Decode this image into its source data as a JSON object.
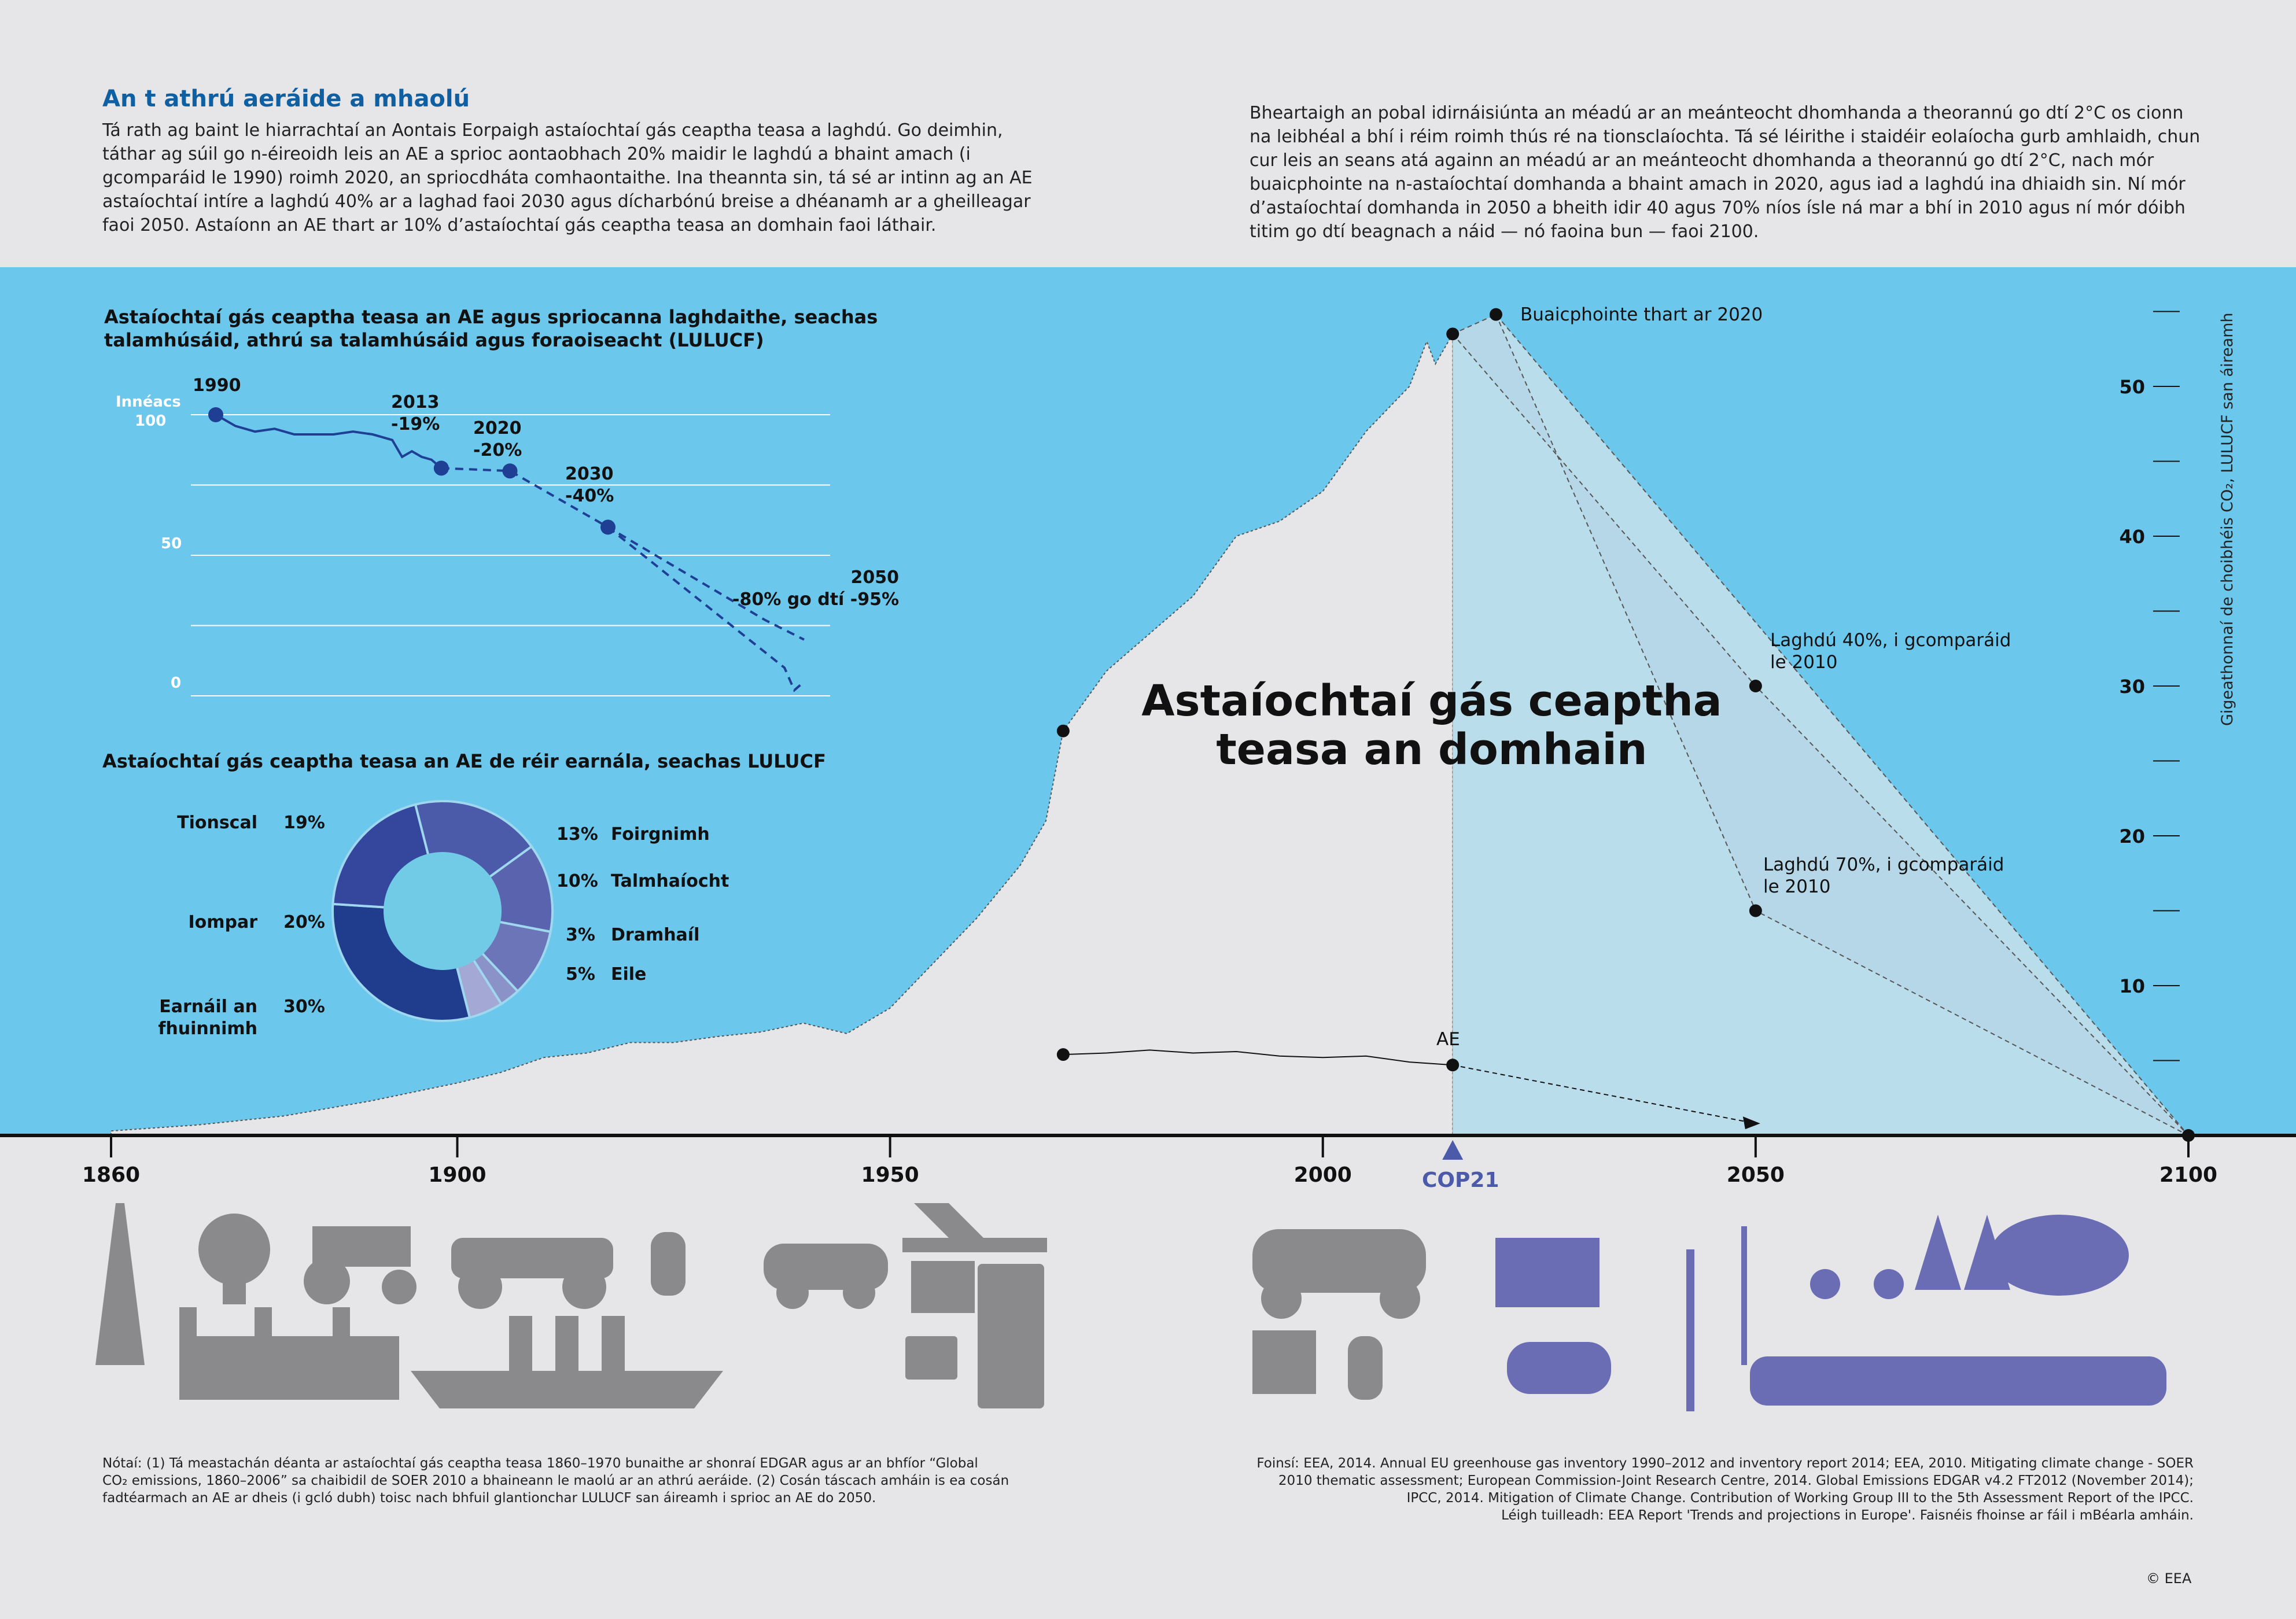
{
  "intro": {
    "title": "An t athrú aeráide a mhaolú",
    "left_text": "Tá rath ag baint le hiarrachtaí an Aontais Eorpaigh astaíochtaí gás ceaptha teasa a laghdú. Go deimhin,\ntáthar ag súil go n-éireoidh leis an AE a sprioc aontaobhach 20% maidir le laghdú a bhaint amach (i\ngcomparáid le 1990) roimh 2020, an spriocdháta comhaontaithe. Ina theannta sin, tá sé ar intinn ag an AE\nastaíochtaí intíre a laghdú 40% ar a laghad faoi 2030 agus dícharbónú breise a dhéanamh ar a gheilleagar\nfaoi 2050. Astaíonn an AE thart ar 10% d’astaíochtaí gás ceaptha teasa an domhain faoi láthair.",
    "right_text": "Bheartaigh an pobal idirnáisiúnta an méadú ar an meánteocht dhomhanda a theorannú go dtí 2°C os cionn\nna leibhéal a bhí i réim roimh thús ré na tionsclaíochta. Tá sé léirithe i staidéir eolaíocha gurb amhlaidh, chun\ncur leis an seans atá againn an méadú ar an meánteocht dhomhanda a theorannú go dtí 2°C, nach mór\nbuaicphointe na n-astaíochtaí domhanda a bhaint amach in 2020, agus iad a laghdú ina dhiaidh sin. Ní mór\nd’astaíochtaí domhanda in 2050 a bheith idir 40 agus 70% níos ísle ná mar a bhí in 2010 agus ní mór dóibh\ntitim go dtí beagnach a náid — nó faoina bun — faoi 2100."
  },
  "colors": {
    "band": "#6cc7ec",
    "area": "#e6e6e8",
    "projection": "#c8e0ec",
    "eu_line": "#1e3f94",
    "icon_grey": "#8a8a8c",
    "icon_purple": "#6a6cb4"
  },
  "chart_data": [
    {
      "type": "area",
      "title": "Astaíochtaí gás ceaptha teasa an domhain",
      "ylabel": "Gigeathonnaí de choibhéis CO₂, LULUCF san áireamh",
      "xlim": [
        1860,
        2100
      ],
      "ylim": [
        0,
        56
      ],
      "x_ticks": [
        "1860",
        "1900",
        "1950",
        "2000",
        "2050",
        "2100"
      ],
      "y_ticks": [
        "10",
        "20",
        "30",
        "40",
        "50"
      ],
      "cop_label": "COP21",
      "cop_year": 2015,
      "world_series": [
        [
          1860,
          0.3
        ],
        [
          1870,
          0.7
        ],
        [
          1880,
          1.3
        ],
        [
          1890,
          2.3
        ],
        [
          1900,
          3.5
        ],
        [
          1905,
          4.2
        ],
        [
          1910,
          5.2
        ],
        [
          1915,
          5.5
        ],
        [
          1920,
          6.2
        ],
        [
          1925,
          6.2
        ],
        [
          1930,
          6.6
        ],
        [
          1935,
          6.9
        ],
        [
          1940,
          7.5
        ],
        [
          1945,
          6.8
        ],
        [
          1950,
          8.5
        ],
        [
          1955,
          11.5
        ],
        [
          1960,
          14.5
        ],
        [
          1965,
          18
        ],
        [
          1968,
          21
        ],
        [
          1970,
          27
        ],
        [
          1975,
          31
        ],
        [
          1980,
          33.5
        ],
        [
          1985,
          36
        ],
        [
          1990,
          40
        ],
        [
          1995,
          41
        ],
        [
          2000,
          43
        ],
        [
          2005,
          47
        ],
        [
          2010,
          50
        ],
        [
          2012,
          53
        ],
        [
          2013,
          51.5
        ],
        [
          2015,
          53.5
        ]
      ],
      "projection_top": [
        [
          2015,
          53.5
        ],
        [
          2020,
          54.8
        ],
        [
          2100,
          0
        ]
      ],
      "projection_bottom": [
        [
          2015,
          53.5
        ],
        [
          2050,
          30
        ],
        [
          2100,
          0
        ]
      ],
      "projection_low": [
        [
          2020,
          54.8
        ],
        [
          2050,
          15
        ],
        [
          2100,
          0
        ]
      ],
      "eu_series": [
        [
          1970,
          5.4
        ],
        [
          1975,
          5.5
        ],
        [
          1980,
          5.7
        ],
        [
          1985,
          5.5
        ],
        [
          1990,
          5.6
        ],
        [
          1995,
          5.3
        ],
        [
          2000,
          5.2
        ],
        [
          2005,
          5.3
        ],
        [
          2010,
          4.9
        ],
        [
          2015,
          4.7
        ]
      ],
      "eu_projection": [
        [
          2015,
          4.7
        ],
        [
          2050,
          0.8
        ]
      ],
      "annotations": {
        "peak": "Buaicphointe thart ar 2020",
        "reduce40": "Laghdú 40%, i gcomparáid\nle 2010",
        "reduce70": "Laghdú 70%, i gcomparáid\nle 2010",
        "eu": "AE"
      }
    },
    {
      "type": "line",
      "title": "Astaíochtaí gás ceaptha teasa an AE agus spriocanna laghdaithe, seachas\ntalamhúsáid, athrú sa talamhúsáid agus foraoiseacht (LULUCF)",
      "ylabel": "Innéacs",
      "y_ticks": [
        "100",
        "50",
        "0"
      ],
      "xlim": [
        1990,
        2050
      ],
      "ylim": [
        0,
        100
      ],
      "series": [
        [
          1990,
          100
        ],
        [
          1992,
          96
        ],
        [
          1994,
          94
        ],
        [
          1996,
          95
        ],
        [
          1998,
          93
        ],
        [
          2000,
          93
        ],
        [
          2002,
          93
        ],
        [
          2004,
          94
        ],
        [
          2006,
          93
        ],
        [
          2008,
          91
        ],
        [
          2009,
          85
        ],
        [
          2010,
          87
        ],
        [
          2011,
          85
        ],
        [
          2012,
          84
        ],
        [
          2013,
          81
        ]
      ],
      "targets": [
        {
          "label": "2013\n-19%",
          "year": 2013,
          "value": 81
        },
        {
          "label": "2020\n-20%",
          "year": 2020,
          "value": 80
        },
        {
          "label": "2030\n-40%",
          "year": 2030,
          "value": 60
        },
        {
          "label": "2050\n-80% go dtí -95%",
          "year": 2050,
          "value_high": 20,
          "value_low": 5
        }
      ],
      "start_label": "1990"
    },
    {
      "type": "pie",
      "title": "Astaíochtaí gás ceaptha teasa an AE de réir earnála, seachas LULUCF",
      "slices": [
        {
          "name": "Tionscal",
          "value": 19,
          "pct": "19%",
          "color": "#4b5aa9"
        },
        {
          "name": "Foirgnimh",
          "value": 13,
          "pct": "13%",
          "color": "#5a64ae"
        },
        {
          "name": "Talmhaíocht",
          "value": 10,
          "pct": "10%",
          "color": "#6c75b8"
        },
        {
          "name": "Dramhaíl",
          "value": 3,
          "pct": "3%",
          "color": "#8a92c8"
        },
        {
          "name": "Eile",
          "value": 5,
          "pct": "5%",
          "color": "#a3a8d4"
        },
        {
          "name": "Earnáil an\nfhuinnimh",
          "value": 30,
          "pct": "30%",
          "color": "#1f3d8c"
        },
        {
          "name": "Iompar",
          "value": 20,
          "pct": "20%",
          "color": "#34479c"
        }
      ]
    }
  ],
  "footer": {
    "note": "Nótaí: (1) Tá meastachán déanta ar astaíochtaí gás ceaptha teasa 1860–1970 bunaithe ar shonraí EDGAR agus ar an bhfíor “Global\nCO₂ emissions, 1860–2006” sa chaibidil de SOER 2010 a bhaineann le maolú ar an athrú aeráide. (2) Cosán táscach amháin is ea cosán\nfadtéarmach an AE ar dheis (i gcló dubh) toisc nach bhfuil glantionchar LULUCF san áireamh i sprioc an AE do 2050.",
    "sources": "Foinsí: EEA, 2014. Annual EU greenhouse gas inventory 1990–2012 and inventory report 2014; EEA, 2010. Mitigating climate change - SOER\n2010 thematic assessment; European Commission-Joint Research Centre, 2014. Global Emissions EDGAR v4.2 FT2012 (November 2014);\nIPCC, 2014. Mitigation of Climate Change. Contribution of Working Group III to the 5th Assessment Report of the IPCC.\nLéigh tuilleadh: EEA Report 'Trends and projections in Europe'. Faisnéis fhoinse ar fáil i mBéarla amháin.",
    "copyright": "© EEA"
  }
}
